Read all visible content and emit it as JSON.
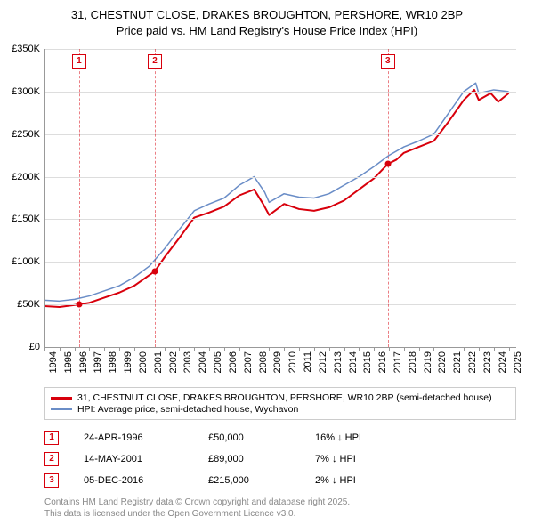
{
  "title_line1": "31, CHESTNUT CLOSE, DRAKES BROUGHTON, PERSHORE, WR10 2BP",
  "title_line2": "Price paid vs. HM Land Registry's House Price Index (HPI)",
  "chart": {
    "type": "line",
    "background_color": "#ffffff",
    "grid_color": "#dddddd",
    "axis_color": "#999999",
    "title_fontsize": 13,
    "label_fontsize": 11,
    "x_min": 1994,
    "x_max": 2025.5,
    "xtick_step": 1,
    "xticks": [
      1994,
      1995,
      1996,
      1997,
      1998,
      1999,
      2000,
      2001,
      2002,
      2003,
      2004,
      2005,
      2006,
      2007,
      2008,
      2009,
      2010,
      2011,
      2012,
      2013,
      2014,
      2015,
      2016,
      2017,
      2018,
      2019,
      2020,
      2021,
      2022,
      2023,
      2024,
      2025
    ],
    "y_min": 0,
    "y_max": 350000,
    "ytick_step": 50000,
    "yticks": [
      {
        "v": 0,
        "label": "£0"
      },
      {
        "v": 50000,
        "label": "£50K"
      },
      {
        "v": 100000,
        "label": "£100K"
      },
      {
        "v": 150000,
        "label": "£150K"
      },
      {
        "v": 200000,
        "label": "£200K"
      },
      {
        "v": 250000,
        "label": "£250K"
      },
      {
        "v": 300000,
        "label": "£300K"
      },
      {
        "v": 350000,
        "label": "£350K"
      }
    ],
    "series": [
      {
        "name": "31, CHESTNUT CLOSE, DRAKES BROUGHTON, PERSHORE, WR10 2BP (semi-detached house)",
        "color": "#d8000c",
        "line_width": 2,
        "data": [
          [
            1994,
            48000
          ],
          [
            1995,
            47000
          ],
          [
            1996.3,
            50000
          ],
          [
            1997,
            52000
          ],
          [
            1998,
            58000
          ],
          [
            1999,
            64000
          ],
          [
            2000,
            72000
          ],
          [
            2001.37,
            89000
          ],
          [
            2002,
            105000
          ],
          [
            2003,
            128000
          ],
          [
            2004,
            152000
          ],
          [
            2005,
            158000
          ],
          [
            2006,
            165000
          ],
          [
            2007,
            178000
          ],
          [
            2008,
            185000
          ],
          [
            2008.6,
            168000
          ],
          [
            2009,
            155000
          ],
          [
            2010,
            168000
          ],
          [
            2011,
            162000
          ],
          [
            2012,
            160000
          ],
          [
            2013,
            164000
          ],
          [
            2014,
            172000
          ],
          [
            2015,
            185000
          ],
          [
            2016,
            198000
          ],
          [
            2016.93,
            215000
          ],
          [
            2017.5,
            220000
          ],
          [
            2018,
            228000
          ],
          [
            2019,
            235000
          ],
          [
            2020,
            242000
          ],
          [
            2021,
            265000
          ],
          [
            2022,
            290000
          ],
          [
            2022.7,
            302000
          ],
          [
            2023,
            290000
          ],
          [
            2023.8,
            298000
          ],
          [
            2024.3,
            288000
          ],
          [
            2025,
            298000
          ]
        ]
      },
      {
        "name": "HPI: Average price, semi-detached house, Wychavon",
        "color": "#6a8dc7",
        "line_width": 1.5,
        "data": [
          [
            1994,
            55000
          ],
          [
            1995,
            54000
          ],
          [
            1996,
            56000
          ],
          [
            1997,
            60000
          ],
          [
            1998,
            66000
          ],
          [
            1999,
            72000
          ],
          [
            2000,
            82000
          ],
          [
            2001,
            95000
          ],
          [
            2002,
            115000
          ],
          [
            2003,
            138000
          ],
          [
            2004,
            160000
          ],
          [
            2005,
            168000
          ],
          [
            2006,
            175000
          ],
          [
            2007,
            190000
          ],
          [
            2008,
            200000
          ],
          [
            2008.7,
            182000
          ],
          [
            2009,
            170000
          ],
          [
            2010,
            180000
          ],
          [
            2011,
            176000
          ],
          [
            2012,
            175000
          ],
          [
            2013,
            180000
          ],
          [
            2014,
            190000
          ],
          [
            2015,
            200000
          ],
          [
            2016,
            212000
          ],
          [
            2017,
            225000
          ],
          [
            2018,
            235000
          ],
          [
            2019,
            242000
          ],
          [
            2020,
            250000
          ],
          [
            2021,
            275000
          ],
          [
            2022,
            300000
          ],
          [
            2022.8,
            310000
          ],
          [
            2023,
            298000
          ],
          [
            2024,
            302000
          ],
          [
            2025,
            300000
          ]
        ]
      }
    ],
    "vlines": [
      {
        "x": 1996.31,
        "label": "1",
        "color": "#d8000c"
      },
      {
        "x": 2001.37,
        "label": "2",
        "color": "#d8000c"
      },
      {
        "x": 2016.93,
        "label": "3",
        "color": "#d8000c"
      }
    ],
    "markers": [
      {
        "x": 1996.31,
        "y": 50000,
        "color": "#d8000c"
      },
      {
        "x": 2001.37,
        "y": 89000,
        "color": "#d8000c"
      },
      {
        "x": 2016.93,
        "y": 215000,
        "color": "#d8000c"
      }
    ]
  },
  "legend": {
    "items": [
      {
        "label": "31, CHESTNUT CLOSE, DRAKES BROUGHTON, PERSHORE, WR10 2BP (semi-detached house)",
        "color": "#d8000c",
        "thickness": 3
      },
      {
        "label": "HPI: Average price, semi-detached house, Wychavon",
        "color": "#6a8dc7",
        "thickness": 2
      }
    ]
  },
  "sales": [
    {
      "num": "1",
      "date": "24-APR-1996",
      "price": "£50,000",
      "delta": "16% ↓ HPI",
      "color": "#d8000c"
    },
    {
      "num": "2",
      "date": "14-MAY-2001",
      "price": "£89,000",
      "delta": "7% ↓ HPI",
      "color": "#d8000c"
    },
    {
      "num": "3",
      "date": "05-DEC-2016",
      "price": "£215,000",
      "delta": "2% ↓ HPI",
      "color": "#d8000c"
    }
  ],
  "footer_line1": "Contains HM Land Registry data © Crown copyright and database right 2025.",
  "footer_line2": "This data is licensed under the Open Government Licence v3.0."
}
